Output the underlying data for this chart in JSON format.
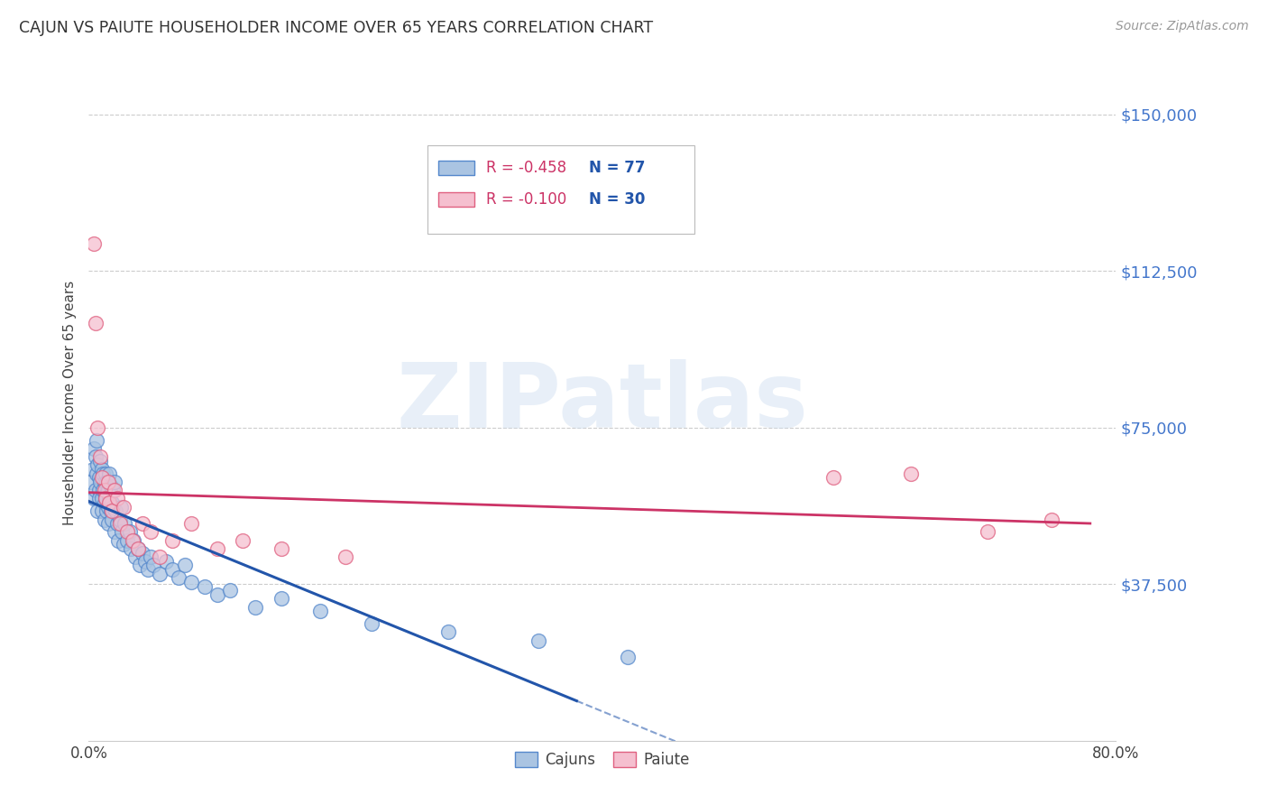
{
  "title": "CAJUN VS PAIUTE HOUSEHOLDER INCOME OVER 65 YEARS CORRELATION CHART",
  "source": "Source: ZipAtlas.com",
  "ylabel": "Householder Income Over 65 years",
  "xlim": [
    0.0,
    0.8
  ],
  "ylim": [
    0,
    162000
  ],
  "yticks": [
    0,
    37500,
    75000,
    112500,
    150000
  ],
  "ytick_labels": [
    "",
    "$37,500",
    "$75,000",
    "$112,500",
    "$150,000"
  ],
  "xticks": [
    0.0,
    0.1,
    0.2,
    0.3,
    0.4,
    0.5,
    0.6,
    0.7,
    0.8
  ],
  "background_color": "#ffffff",
  "cajun_color": "#aac4e2",
  "cajun_edge_color": "#5588cc",
  "paiute_color": "#f5bfcf",
  "paiute_edge_color": "#e06080",
  "cajun_line_color": "#2255aa",
  "paiute_line_color": "#cc3366",
  "legend_r_cajun": "R = -0.458",
  "legend_n_cajun": "N = 77",
  "legend_r_paiute": "R = -0.100",
  "legend_n_paiute": "N = 30",
  "cajun_x": [
    0.002,
    0.003,
    0.004,
    0.004,
    0.005,
    0.005,
    0.006,
    0.006,
    0.007,
    0.007,
    0.008,
    0.008,
    0.008,
    0.009,
    0.009,
    0.01,
    0.01,
    0.01,
    0.011,
    0.011,
    0.012,
    0.012,
    0.012,
    0.013,
    0.013,
    0.013,
    0.014,
    0.014,
    0.015,
    0.015,
    0.015,
    0.016,
    0.016,
    0.017,
    0.017,
    0.018,
    0.018,
    0.019,
    0.019,
    0.02,
    0.02,
    0.021,
    0.022,
    0.023,
    0.024,
    0.025,
    0.026,
    0.027,
    0.028,
    0.03,
    0.032,
    0.033,
    0.035,
    0.036,
    0.038,
    0.04,
    0.042,
    0.044,
    0.046,
    0.048,
    0.05,
    0.055,
    0.06,
    0.065,
    0.07,
    0.075,
    0.08,
    0.09,
    0.1,
    0.11,
    0.13,
    0.15,
    0.18,
    0.22,
    0.28,
    0.35,
    0.42
  ],
  "cajun_y": [
    62000,
    65000,
    70000,
    58000,
    68000,
    60000,
    64000,
    72000,
    55000,
    66000,
    60000,
    58000,
    63000,
    67000,
    62000,
    65000,
    58000,
    55000,
    60000,
    64000,
    62000,
    57000,
    53000,
    59000,
    64000,
    58000,
    55000,
    62000,
    60000,
    56000,
    52000,
    58000,
    64000,
    55000,
    61000,
    57000,
    53000,
    60000,
    56000,
    62000,
    50000,
    55000,
    52000,
    48000,
    53000,
    56000,
    50000,
    47000,
    52000,
    48000,
    50000,
    46000,
    48000,
    44000,
    46000,
    42000,
    45000,
    43000,
    41000,
    44000,
    42000,
    40000,
    43000,
    41000,
    39000,
    42000,
    38000,
    37000,
    35000,
    36000,
    32000,
    34000,
    31000,
    28000,
    26000,
    24000,
    20000
  ],
  "paiute_x": [
    0.004,
    0.005,
    0.007,
    0.009,
    0.01,
    0.012,
    0.013,
    0.015,
    0.016,
    0.018,
    0.02,
    0.022,
    0.024,
    0.027,
    0.03,
    0.034,
    0.038,
    0.042,
    0.048,
    0.055,
    0.065,
    0.08,
    0.1,
    0.12,
    0.15,
    0.2,
    0.58,
    0.64,
    0.7,
    0.75
  ],
  "paiute_y": [
    119000,
    100000,
    75000,
    68000,
    63000,
    60000,
    58000,
    62000,
    57000,
    55000,
    60000,
    58000,
    52000,
    56000,
    50000,
    48000,
    46000,
    52000,
    50000,
    44000,
    48000,
    52000,
    46000,
    48000,
    46000,
    44000,
    63000,
    64000,
    50000,
    53000
  ]
}
